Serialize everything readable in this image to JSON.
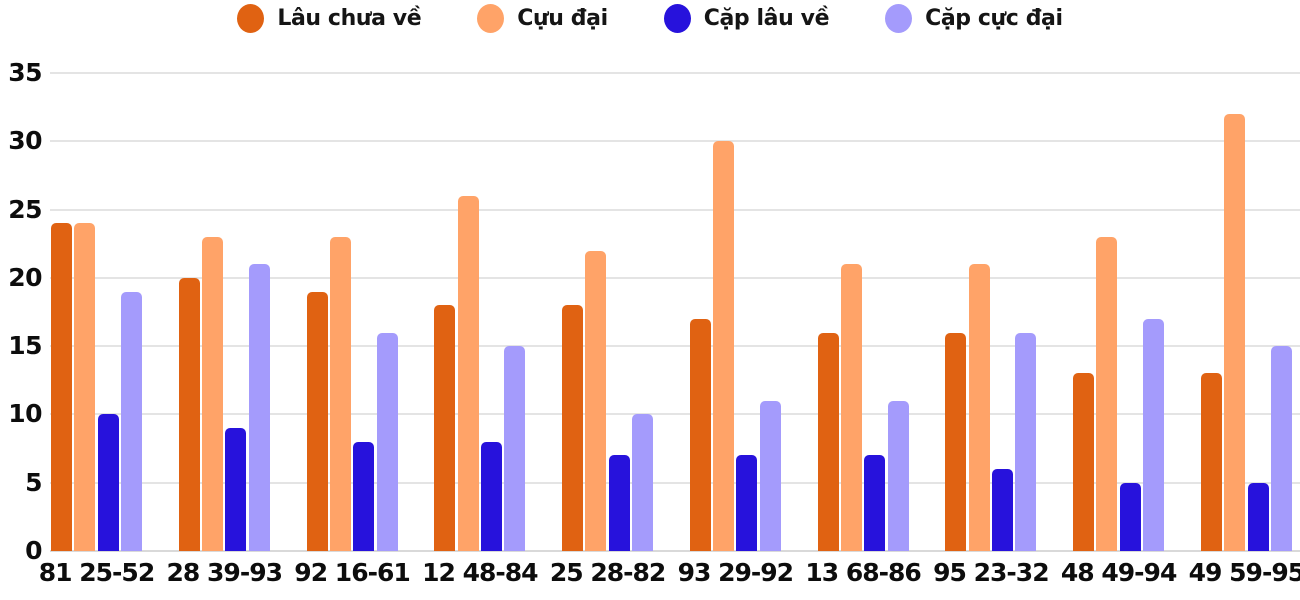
{
  "chart_data": {
    "type": "bar",
    "title": "",
    "xlabel": "",
    "ylabel": "",
    "categories": [
      "81 25-52",
      "28 39-93",
      "92 16-61",
      "12 48-84",
      "25 28-82",
      "93 29-92",
      "13 68-86",
      "95 23-32",
      "48 49-94",
      "49 59-95"
    ],
    "series": [
      {
        "name": "Lâu chưa về",
        "color": "#e06212",
        "values": [
          24,
          20,
          19,
          18,
          18,
          17,
          16,
          16,
          13,
          13
        ]
      },
      {
        "name": "Cựu đại",
        "color": "#ffa368",
        "values": [
          24,
          23,
          23,
          26,
          22,
          30,
          21,
          21,
          23,
          32
        ]
      },
      {
        "name": "Cặp lâu về",
        "color": "#2712dc",
        "values": [
          10,
          9,
          8,
          8,
          7,
          7,
          7,
          6,
          5,
          5
        ]
      },
      {
        "name": "Cặp cực đại",
        "color": "#a49bfc",
        "values": [
          19,
          21,
          16,
          15,
          10,
          11,
          11,
          16,
          17,
          15
        ]
      }
    ],
    "ylim": [
      0,
      35
    ],
    "yticks": [
      0,
      5,
      10,
      15,
      20,
      25,
      30,
      35
    ],
    "grid": true,
    "legend_position": "top",
    "colors": {
      "grid": "#e4e4e4",
      "baseline": "#d9d9d9",
      "text": "#0d0d0d"
    }
  }
}
